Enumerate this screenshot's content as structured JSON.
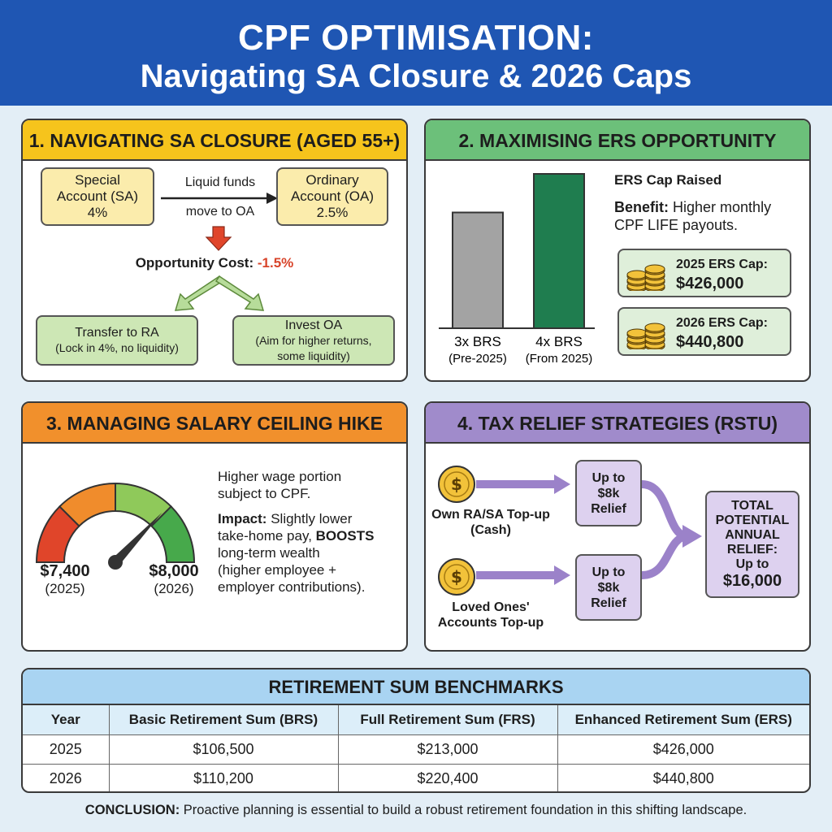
{
  "header": {
    "title_line1": "CPF OPTIMISATION:",
    "title_line2": "Navigating SA Closure & 2026 Caps"
  },
  "panel1": {
    "title": "1. NAVIGATING SA CLOSURE (AGED 55+)",
    "sa_line1": "Special",
    "sa_line2": "Account (SA)",
    "sa_rate": "4%",
    "arrow_label_line1": "Liquid funds",
    "arrow_label_line2": "move to OA",
    "oa_line1": "Ordinary",
    "oa_line2": "Account (OA)",
    "oa_rate": "2.5%",
    "opp_cost_label": "Opportunity Cost:",
    "opp_cost_value": "-1.5%",
    "ra_title": "Transfer to RA",
    "ra_note": "(Lock in 4%, no liquidity)",
    "invest_title": "Invest OA",
    "invest_note_line1": "(Aim for higher returns,",
    "invest_note_line2": "some liquidity)",
    "colors": {
      "arrow_red": "#e0452a",
      "arrow_green": "#b7dc9a"
    }
  },
  "panel2": {
    "title": "2. MAXIMISING ERS OPPORTUNITY",
    "bars": [
      {
        "label": "3x BRS",
        "sublabel": "(Pre-2025)",
        "value": 3,
        "color": "#a3a3a3"
      },
      {
        "label": "4x BRS",
        "sublabel": "(From 2025)",
        "value": 4,
        "color": "#1f7d4f"
      }
    ],
    "cap_raised": "ERS Cap Raised",
    "benefit_label": "Benefit:",
    "benefit_text_line1": "Higher monthly",
    "benefit_text_line2": "CPF LIFE payouts.",
    "cap_2025_label": "2025 ERS Cap:",
    "cap_2025_value": "$426,000",
    "cap_2026_label": "2026 ERS Cap:",
    "cap_2026_value": "$440,800",
    "coins_icon": "coin-stack-icon"
  },
  "panel3": {
    "title": "3. MANAGING SALARY CEILING HIKE",
    "gauge_left_value": "$7,400",
    "gauge_left_year": "(2025)",
    "gauge_right_value": "$8,000",
    "gauge_right_year": "(2026)",
    "gauge_colors": [
      "#e0452a",
      "#f08c2c",
      "#8fc95a",
      "#47a94b"
    ],
    "text1_line1": "Higher wage portion",
    "text1_line2": "subject to CPF.",
    "impact_label": "Impact:",
    "impact_line1": "Slightly lower",
    "impact_line2_a": "take-home pay,",
    "impact_line2_b": "BOOSTS",
    "impact_line3": "long-term wealth",
    "impact_line4": "(higher employee +",
    "impact_line5": "employer contributions)."
  },
  "panel4": {
    "title": "4. TAX RELIEF STRATEGIES (RSTU)",
    "own_label_line1": "Own RA/SA Top-up",
    "own_label_line2": "(Cash)",
    "loved_label_line1": "Loved Ones'",
    "loved_label_line2": "Accounts Top-up",
    "relief_line1": "Up to",
    "relief_line2": "$8k",
    "relief_line3": "Relief",
    "total_line1": "TOTAL",
    "total_line2": "POTENTIAL",
    "total_line3": "ANNUAL",
    "total_line4": "RELIEF:",
    "total_line5": "Up to",
    "total_line6": "$16,000",
    "coin_icon": "dollar-coin-icon"
  },
  "table": {
    "title": "RETIREMENT SUM BENCHMARKS",
    "headers": [
      "Year",
      "Basic Retirement Sum (BRS)",
      "Full Retirement Sum (FRS)",
      "Enhanced Retirement Sum (ERS)"
    ],
    "rows": [
      [
        "2025",
        "$106,500",
        "$213,000",
        "$426,000"
      ],
      [
        "2026",
        "$110,200",
        "$220,400",
        "$440,800"
      ]
    ]
  },
  "conclusion": {
    "label": "CONCLUSION:",
    "text": "Proactive planning is essential to build a robust retirement foundation in this shifting landscape."
  }
}
